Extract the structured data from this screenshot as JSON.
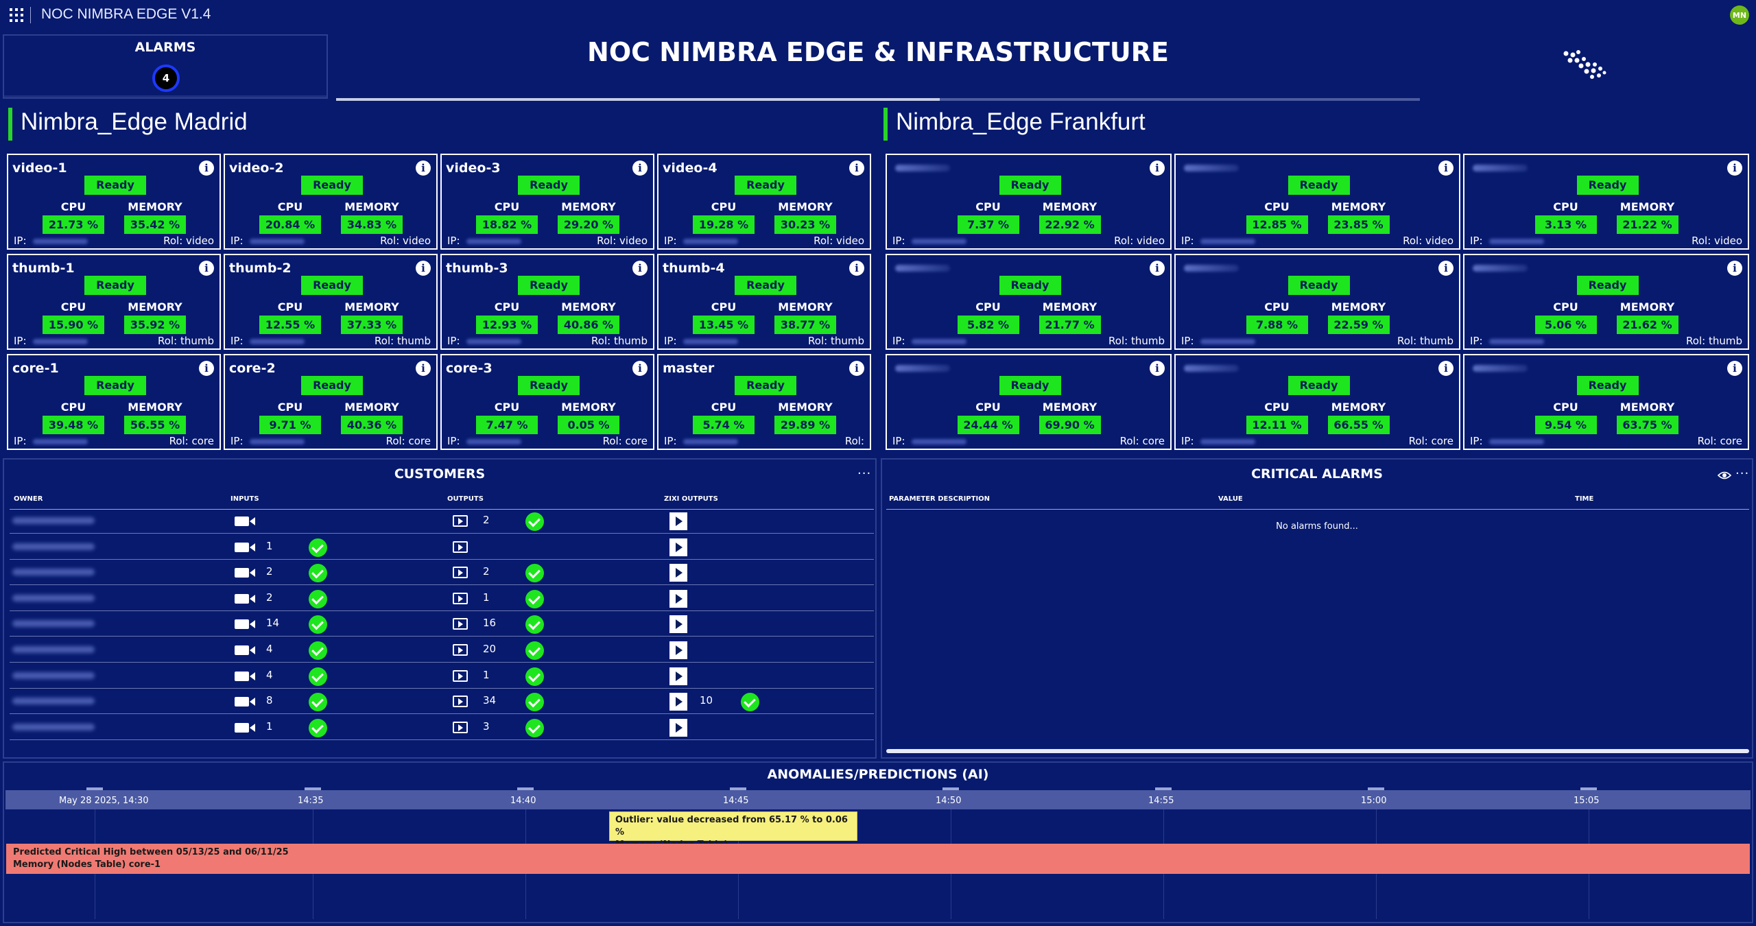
{
  "app": {
    "title": "NOC NIMBRA EDGE V1.4",
    "user_initials": "MN"
  },
  "header": {
    "alarms_label": "ALARMS",
    "alarms_count": "4",
    "title": "NOC NIMBRA EDGE & INFRASTRUCTURE"
  },
  "madrid": {
    "title": "Nimbra_Edge Madrid",
    "nodes": [
      {
        "name": "video-1",
        "state": "Ready",
        "cpu_label": "CPU",
        "mem_label": "MEMORY",
        "cpu": "21.73 %",
        "mem": "35.42 %",
        "ip_label": "IP:",
        "rol": "Rol: video"
      },
      {
        "name": "video-2",
        "state": "Ready",
        "cpu_label": "CPU",
        "mem_label": "MEMORY",
        "cpu": "20.84 %",
        "mem": "34.83 %",
        "ip_label": "IP:",
        "rol": "Rol: video"
      },
      {
        "name": "video-3",
        "state": "Ready",
        "cpu_label": "CPU",
        "mem_label": "MEMORY",
        "cpu": "18.82 %",
        "mem": "29.20 %",
        "ip_label": "IP:",
        "rol": "Rol: video"
      },
      {
        "name": "video-4",
        "state": "Ready",
        "cpu_label": "CPU",
        "mem_label": "MEMORY",
        "cpu": "19.28 %",
        "mem": "30.23 %",
        "ip_label": "IP:",
        "rol": "Rol: video"
      },
      {
        "name": "thumb-1",
        "state": "Ready",
        "cpu_label": "CPU",
        "mem_label": "MEMORY",
        "cpu": "15.90 %",
        "mem": "35.92 %",
        "ip_label": "IP:",
        "rol": "Rol: thumb"
      },
      {
        "name": "thumb-2",
        "state": "Ready",
        "cpu_label": "CPU",
        "mem_label": "MEMORY",
        "cpu": "12.55 %",
        "mem": "37.33 %",
        "ip_label": "IP:",
        "rol": "Rol: thumb"
      },
      {
        "name": "thumb-3",
        "state": "Ready",
        "cpu_label": "CPU",
        "mem_label": "MEMORY",
        "cpu": "12.93 %",
        "mem": "40.86 %",
        "ip_label": "IP:",
        "rol": "Rol: thumb"
      },
      {
        "name": "thumb-4",
        "state": "Ready",
        "cpu_label": "CPU",
        "mem_label": "MEMORY",
        "cpu": "13.45 %",
        "mem": "38.77 %",
        "ip_label": "IP:",
        "rol": "Rol: thumb"
      },
      {
        "name": "core-1",
        "state": "Ready",
        "cpu_label": "CPU",
        "mem_label": "MEMORY",
        "cpu": "39.48 %",
        "mem": "56.55 %",
        "ip_label": "IP:",
        "rol": "Rol: core"
      },
      {
        "name": "core-2",
        "state": "Ready",
        "cpu_label": "CPU",
        "mem_label": "MEMORY",
        "cpu": "9.71 %",
        "mem": "40.36 %",
        "ip_label": "IP:",
        "rol": "Rol: core"
      },
      {
        "name": "core-3",
        "state": "Ready",
        "cpu_label": "CPU",
        "mem_label": "MEMORY",
        "cpu": "7.47 %",
        "mem": "0.05 %",
        "ip_label": "IP:",
        "rol": "Rol: core"
      },
      {
        "name": "master",
        "state": "Ready",
        "cpu_label": "CPU",
        "mem_label": "MEMORY",
        "cpu": "5.74 %",
        "mem": "29.89 %",
        "ip_label": "IP:",
        "rol": "Rol:"
      }
    ]
  },
  "frankfurt": {
    "title": "Nimbra_Edge Frankfurt",
    "nodes": [
      {
        "state": "Ready",
        "cpu_label": "CPU",
        "mem_label": "MEMORY",
        "cpu": "7.37 %",
        "mem": "22.92 %",
        "ip_label": "IP:",
        "rol": "Rol: video"
      },
      {
        "state": "Ready",
        "cpu_label": "CPU",
        "mem_label": "MEMORY",
        "cpu": "12.85 %",
        "mem": "23.85 %",
        "ip_label": "IP:",
        "rol": "Rol: video"
      },
      {
        "state": "Ready",
        "cpu_label": "CPU",
        "mem_label": "MEMORY",
        "cpu": "3.13 %",
        "mem": "21.22 %",
        "ip_label": "IP:",
        "rol": "Rol: video"
      },
      {
        "state": "Ready",
        "cpu_label": "CPU",
        "mem_label": "MEMORY",
        "cpu": "5.82 %",
        "mem": "21.77 %",
        "ip_label": "IP:",
        "rol": "Rol: thumb"
      },
      {
        "state": "Ready",
        "cpu_label": "CPU",
        "mem_label": "MEMORY",
        "cpu": "7.88 %",
        "mem": "22.59 %",
        "ip_label": "IP:",
        "rol": "Rol: thumb"
      },
      {
        "state": "Ready",
        "cpu_label": "CPU",
        "mem_label": "MEMORY",
        "cpu": "5.06 %",
        "mem": "21.62 %",
        "ip_label": "IP:",
        "rol": "Rol: thumb"
      },
      {
        "state": "Ready",
        "cpu_label": "CPU",
        "mem_label": "MEMORY",
        "cpu": "24.44 %",
        "mem": "69.90 %",
        "ip_label": "IP:",
        "rol": "Rol: core"
      },
      {
        "state": "Ready",
        "cpu_label": "CPU",
        "mem_label": "MEMORY",
        "cpu": "12.11 %",
        "mem": "66.55 %",
        "ip_label": "IP:",
        "rol": "Rol: core"
      },
      {
        "state": "Ready",
        "cpu_label": "CPU",
        "mem_label": "MEMORY",
        "cpu": "9.54 %",
        "mem": "63.75 %",
        "ip_label": "IP:",
        "rol": "Rol: core"
      }
    ]
  },
  "customers": {
    "title": "CUSTOMERS",
    "more": "···",
    "columns": {
      "owner": "OWNER",
      "inputs": "INPUTS",
      "outputs": "OUTPUTS",
      "zixi": "ZIXI OUTPUTS"
    },
    "rows": [
      {
        "inputs": "",
        "input_ok": false,
        "outputs": "2",
        "output_ok": true,
        "zixi": "",
        "zixi_ok": false
      },
      {
        "inputs": "1",
        "input_ok": true,
        "outputs": "",
        "output_ok": false,
        "zixi": "",
        "zixi_ok": false
      },
      {
        "inputs": "2",
        "input_ok": true,
        "outputs": "2",
        "output_ok": true,
        "zixi": "",
        "zixi_ok": false
      },
      {
        "inputs": "2",
        "input_ok": true,
        "outputs": "1",
        "output_ok": true,
        "zixi": "",
        "zixi_ok": false
      },
      {
        "inputs": "14",
        "input_ok": true,
        "outputs": "16",
        "output_ok": true,
        "zixi": "",
        "zixi_ok": false
      },
      {
        "inputs": "4",
        "input_ok": true,
        "outputs": "20",
        "output_ok": true,
        "zixi": "",
        "zixi_ok": false
      },
      {
        "inputs": "4",
        "input_ok": true,
        "outputs": "1",
        "output_ok": true,
        "zixi": "",
        "zixi_ok": false
      },
      {
        "inputs": "8",
        "input_ok": true,
        "outputs": "34",
        "output_ok": true,
        "zixi": "10",
        "zixi_ok": true
      },
      {
        "inputs": "1",
        "input_ok": true,
        "outputs": "3",
        "output_ok": true,
        "zixi": "",
        "zixi_ok": false
      }
    ]
  },
  "critical_alarms": {
    "title": "CRITICAL ALARMS",
    "more": "···",
    "columns": {
      "param": "PARAMETER DESCRIPTION",
      "value": "VALUE",
      "time": "TIME"
    },
    "empty": "No alarms found..."
  },
  "anomalies": {
    "title": "ANOMALIES/PREDICTIONS (AI)",
    "ticks": [
      "May 28 2025, 14:30",
      "14:35",
      "14:40",
      "14:45",
      "14:50",
      "14:55",
      "15:00",
      "15:05"
    ],
    "outlier": {
      "line1": "Outlier: value decreased from 65.17 % to 0.06 %",
      "line2": "Memory (Nodes Table)"
    },
    "prediction": {
      "line1": "Predicted Critical High between 05/13/25 and 06/11/25",
      "line2": "Memory (Nodes Table) core-1"
    },
    "colors": {
      "outlier": "#f6f07e",
      "prediction": "#f07a73"
    }
  },
  "colors": {
    "background": "#071a6e",
    "status_ok": "#1ee61e",
    "accent_bar": "#28d428"
  }
}
